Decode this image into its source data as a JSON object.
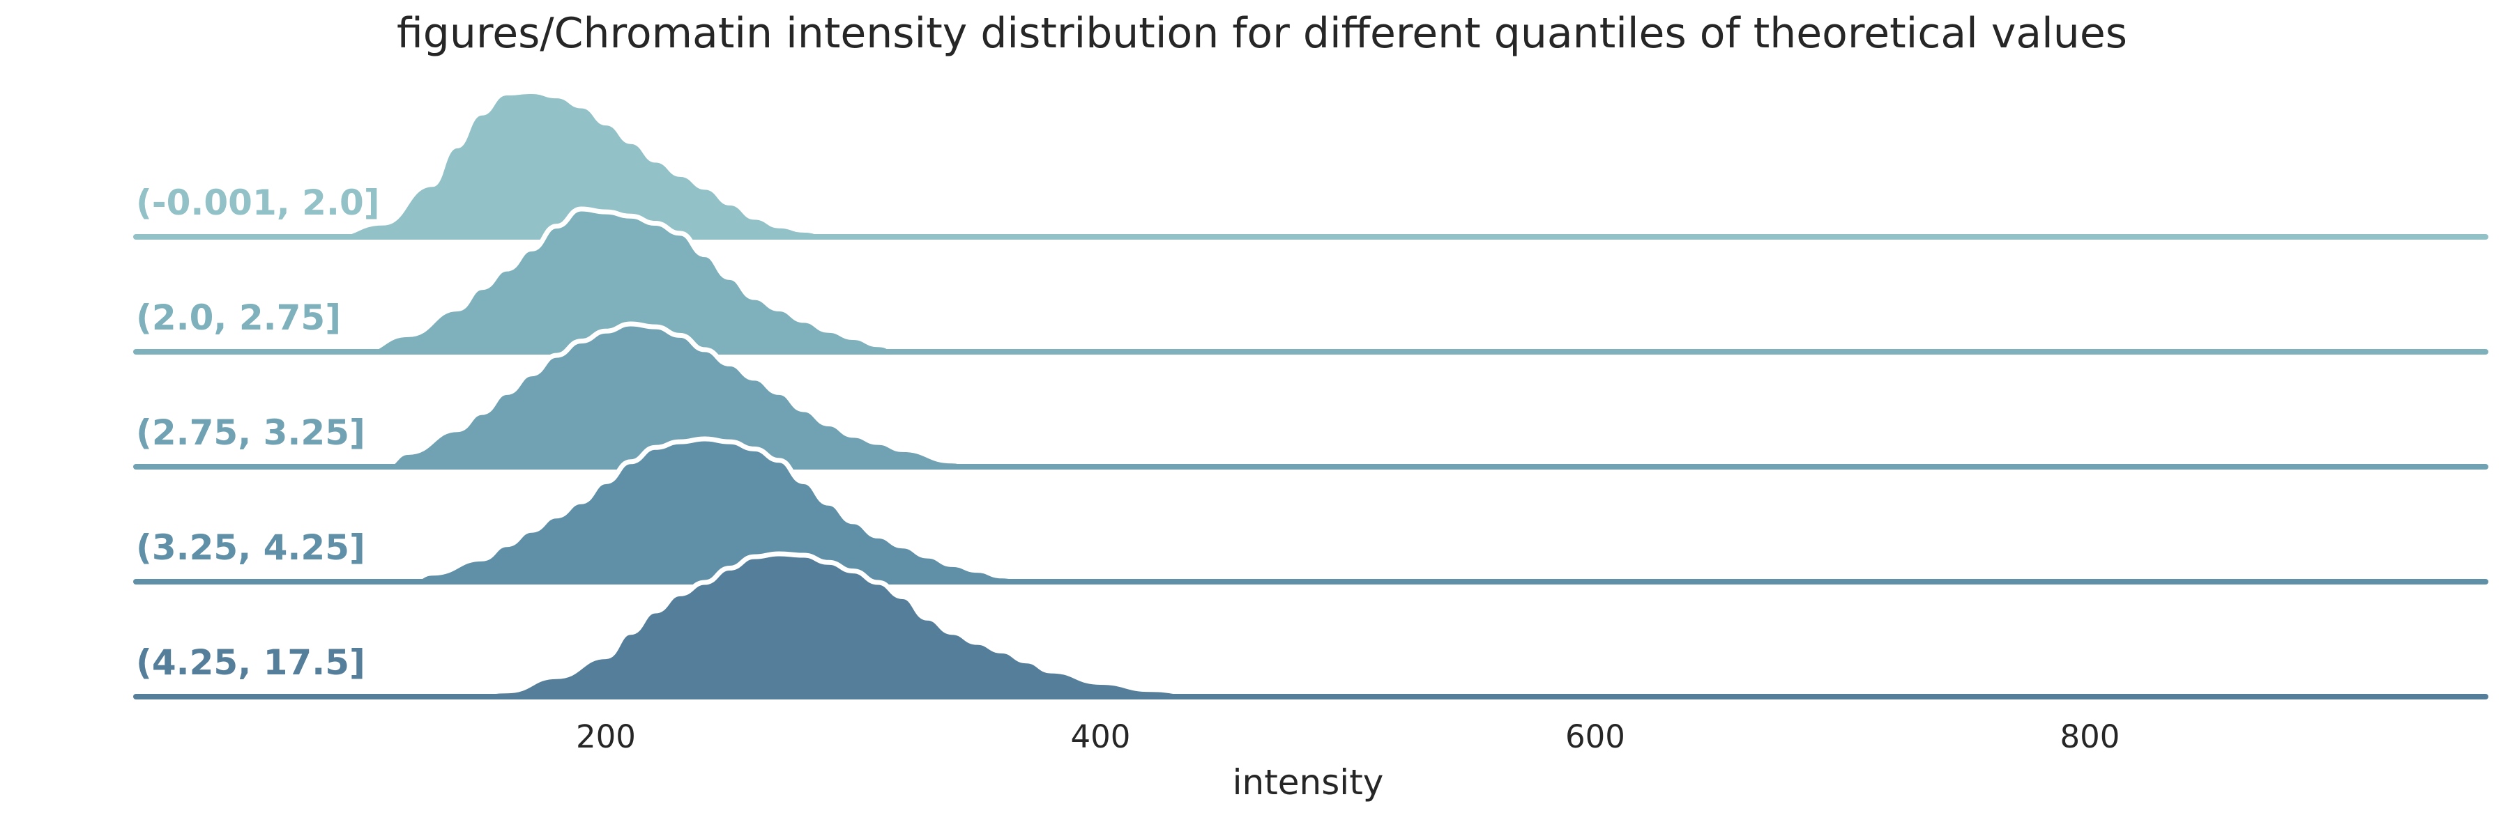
{
  "chart_data": {
    "type": "area",
    "title": "figures/Chromatin intensity distribution for different quantiles of theoretical values",
    "xlabel": "intensity",
    "ylabel": "",
    "xlim": [
      10,
      960
    ],
    "xticks": [
      200,
      400,
      600,
      800
    ],
    "grid": false,
    "legend": "none",
    "series": [
      {
        "name": "(-0.001, 2.0]",
        "color": "#92c1c7",
        "x": [
          90,
          110,
          130,
          140,
          150,
          160,
          170,
          180,
          190,
          200,
          210,
          220,
          230,
          240,
          250,
          260,
          270,
          280,
          290
        ],
        "y": [
          0,
          0.08,
          0.35,
          0.62,
          0.85,
          0.99,
          1.0,
          0.97,
          0.9,
          0.78,
          0.65,
          0.52,
          0.42,
          0.33,
          0.22,
          0.12,
          0.06,
          0.03,
          0
        ]
      },
      {
        "name": "(2.0, 2.75]",
        "color": "#7fb1bc",
        "x": [
          100,
          120,
          140,
          150,
          160,
          170,
          180,
          190,
          200,
          210,
          220,
          230,
          240,
          250,
          260,
          270,
          280,
          290,
          300,
          310,
          320
        ],
        "y": [
          0,
          0.12,
          0.3,
          0.45,
          0.58,
          0.72,
          0.88,
          1.0,
          0.98,
          0.95,
          0.9,
          0.83,
          0.68,
          0.52,
          0.38,
          0.3,
          0.22,
          0.15,
          0.1,
          0.05,
          0
        ]
      },
      {
        "name": "(2.75, 3.25]",
        "color": "#71a2b3",
        "x": [
          110,
          120,
          140,
          150,
          160,
          170,
          180,
          190,
          200,
          210,
          220,
          230,
          240,
          250,
          260,
          270,
          280,
          290,
          300,
          310,
          320,
          340,
          350
        ],
        "y": [
          0,
          0.1,
          0.26,
          0.38,
          0.52,
          0.65,
          0.78,
          0.88,
          0.95,
          1.0,
          0.98,
          0.92,
          0.82,
          0.72,
          0.62,
          0.52,
          0.4,
          0.3,
          0.22,
          0.17,
          0.12,
          0.04,
          0
        ]
      },
      {
        "name": "(3.25, 4.25]",
        "color": "#5f90a7",
        "x": [
          120,
          130,
          150,
          160,
          170,
          180,
          190,
          200,
          210,
          220,
          230,
          240,
          250,
          260,
          270,
          280,
          290,
          300,
          310,
          320,
          330,
          340,
          350,
          360,
          370,
          380
        ],
        "y": [
          0,
          0.06,
          0.16,
          0.26,
          0.36,
          0.46,
          0.56,
          0.7,
          0.84,
          0.94,
          0.98,
          1.0,
          0.98,
          0.93,
          0.85,
          0.7,
          0.55,
          0.42,
          0.32,
          0.25,
          0.18,
          0.12,
          0.08,
          0.04,
          0.02,
          0
        ]
      },
      {
        "name": "(4.25, 17.5]",
        "color": "#557e9a",
        "x": [
          140,
          160,
          180,
          200,
          210,
          220,
          230,
          240,
          250,
          260,
          270,
          280,
          290,
          300,
          310,
          320,
          330,
          340,
          350,
          360,
          370,
          380,
          400,
          420,
          440,
          450
        ],
        "y": [
          0,
          0.04,
          0.14,
          0.28,
          0.45,
          0.6,
          0.72,
          0.8,
          0.9,
          0.98,
          1.0,
          0.99,
          0.94,
          0.88,
          0.8,
          0.7,
          0.55,
          0.45,
          0.38,
          0.32,
          0.25,
          0.18,
          0.1,
          0.05,
          0.02,
          0
        ]
      }
    ]
  }
}
